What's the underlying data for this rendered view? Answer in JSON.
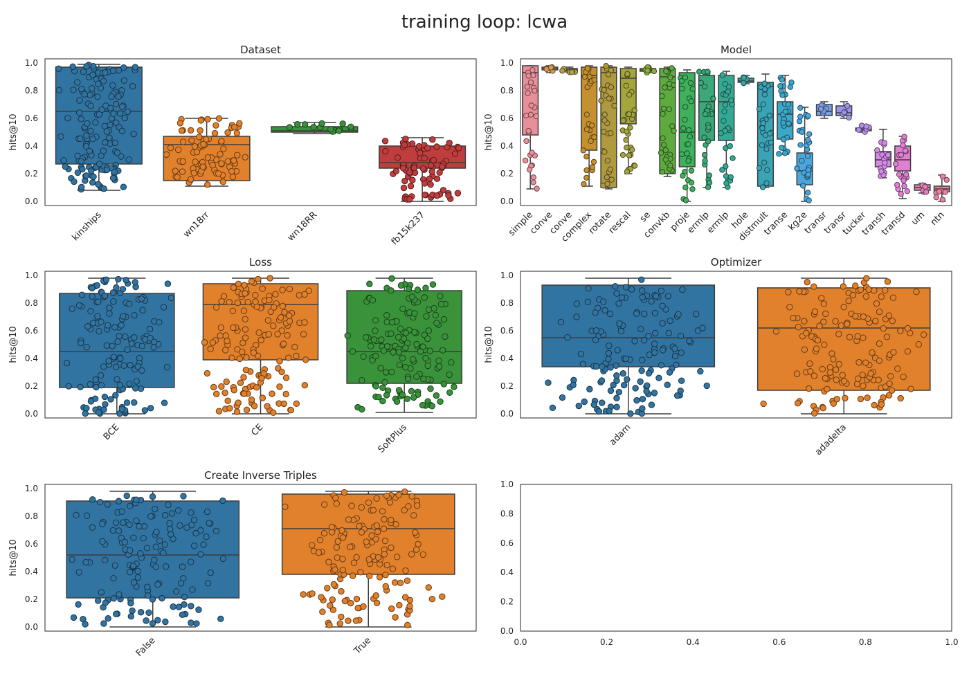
{
  "suptitle": "training loop: lcwa",
  "chart_data": [
    {
      "type": "box",
      "title": "Dataset",
      "ylabel": "hits@10",
      "ylim": [
        0,
        1.0
      ],
      "yticks": [
        "0.0",
        "0.2",
        "0.4",
        "0.6",
        "0.8",
        "1.0"
      ],
      "categories": [
        "kinships",
        "wn18rr",
        "wn18RR",
        "fb15k237"
      ],
      "colors": [
        "#3274a1",
        "#e1812c",
        "#3a923a",
        "#c03d3e"
      ],
      "boxes": [
        {
          "whislo": 0.08,
          "q1": 0.27,
          "med": 0.65,
          "q3": 0.97,
          "whishi": 0.99
        },
        {
          "whislo": 0.11,
          "q1": 0.15,
          "med": 0.41,
          "q3": 0.47,
          "whishi": 0.6
        },
        {
          "whislo": 0.49,
          "q1": 0.5,
          "med": 0.51,
          "q3": 0.54,
          "whishi": 0.57
        },
        {
          "whislo": 0.0,
          "q1": 0.24,
          "med": 0.28,
          "q3": 0.4,
          "whishi": 0.46
        }
      ]
    },
    {
      "type": "box",
      "title": "Model",
      "ylabel": "hits@10",
      "ylim": [
        0,
        1.0
      ],
      "yticks": [
        "0.0",
        "0.2",
        "0.4",
        "0.6",
        "0.8",
        "1.0"
      ],
      "categories": [
        "simple",
        "conve",
        "conve",
        "complex",
        "rotate",
        "rescal",
        "se",
        "convkb",
        "proje",
        "ermlp",
        "ermlp",
        "hole",
        "distmult",
        "transe",
        "kg2e",
        "transr",
        "transr",
        "tucker",
        "transh",
        "transd",
        "um",
        "ntn"
      ],
      "colors": [
        "#e8909a",
        "#d49b56",
        "#b3a34f",
        "#c5902f",
        "#b09a3f",
        "#a5a53e",
        "#8fac3e",
        "#5daa3e",
        "#3fb05c",
        "#3aa878",
        "#35a894",
        "#38a8a5",
        "#3aa3b5",
        "#3ba7c9",
        "#4aa6dc",
        "#7c9fe3",
        "#9b95e8",
        "#b491e8",
        "#d58ae8",
        "#e080d3",
        "#e57fb8",
        "#e684a3"
      ],
      "boxes": [
        {
          "whislo": 0.09,
          "q1": 0.48,
          "med": 0.93,
          "q3": 0.98,
          "whishi": 0.98
        },
        {
          "whislo": 0.93,
          "q1": 0.95,
          "med": 0.96,
          "q3": 0.97,
          "whishi": 0.98
        },
        {
          "whislo": 0.93,
          "q1": 0.94,
          "med": 0.95,
          "q3": 0.96,
          "whishi": 0.97
        },
        {
          "whislo": 0.11,
          "q1": 0.37,
          "med": 0.91,
          "q3": 0.97,
          "whishi": 0.98
        },
        {
          "whislo": 0.09,
          "q1": 0.1,
          "med": 0.93,
          "q3": 0.97,
          "whishi": 0.98
        },
        {
          "whislo": 0.2,
          "q1": 0.56,
          "med": 0.89,
          "q3": 0.96,
          "whishi": 0.97
        },
        {
          "whislo": 0.93,
          "q1": 0.94,
          "med": 0.95,
          "q3": 0.96,
          "whishi": 0.97
        },
        {
          "whislo": 0.18,
          "q1": 0.2,
          "med": 0.9,
          "q3": 0.96,
          "whishi": 0.97
        },
        {
          "whislo": 0.0,
          "q1": 0.25,
          "med": 0.5,
          "q3": 0.93,
          "whishi": 0.95
        },
        {
          "whislo": 0.1,
          "q1": 0.44,
          "med": 0.72,
          "q3": 0.91,
          "whishi": 0.94
        },
        {
          "whislo": 0.1,
          "q1": 0.44,
          "med": 0.72,
          "q3": 0.91,
          "whishi": 0.94
        },
        {
          "whislo": 0.85,
          "q1": 0.86,
          "med": 0.87,
          "q3": 0.89,
          "whishi": 0.91
        },
        {
          "whislo": 0.1,
          "q1": 0.11,
          "med": 0.83,
          "q3": 0.86,
          "whishi": 0.92
        },
        {
          "whislo": 0.34,
          "q1": 0.45,
          "med": 0.63,
          "q3": 0.72,
          "whishi": 0.91
        },
        {
          "whislo": 0.0,
          "q1": 0.12,
          "med": 0.22,
          "q3": 0.35,
          "whishi": 0.68
        },
        {
          "whislo": 0.6,
          "q1": 0.62,
          "med": 0.65,
          "q3": 0.7,
          "whishi": 0.72
        },
        {
          "whislo": 0.6,
          "q1": 0.62,
          "med": 0.64,
          "q3": 0.69,
          "whishi": 0.72
        },
        {
          "whislo": 0.5,
          "q1": 0.51,
          "med": 0.52,
          "q3": 0.53,
          "whishi": 0.55
        },
        {
          "whislo": 0.17,
          "q1": 0.25,
          "med": 0.3,
          "q3": 0.36,
          "whishi": 0.52
        },
        {
          "whislo": 0.02,
          "q1": 0.22,
          "med": 0.3,
          "q3": 0.4,
          "whishi": 0.47
        },
        {
          "whislo": 0.06,
          "q1": 0.08,
          "med": 0.1,
          "q3": 0.12,
          "whishi": 0.13
        },
        {
          "whislo": 0.0,
          "q1": 0.07,
          "med": 0.09,
          "q3": 0.11,
          "whishi": 0.19
        }
      ]
    },
    {
      "type": "box",
      "title": "Loss",
      "ylabel": "hits@10",
      "ylim": [
        0,
        1.0
      ],
      "yticks": [
        "0.0",
        "0.2",
        "0.4",
        "0.6",
        "0.8",
        "1.0"
      ],
      "categories": [
        "BCE",
        "CE",
        "SoftPlus"
      ],
      "colors": [
        "#3274a1",
        "#e1812c",
        "#3a923a"
      ],
      "boxes": [
        {
          "whislo": 0.0,
          "q1": 0.19,
          "med": 0.45,
          "q3": 0.87,
          "whishi": 0.98
        },
        {
          "whislo": 0.0,
          "q1": 0.39,
          "med": 0.79,
          "q3": 0.94,
          "whishi": 0.98
        },
        {
          "whislo": 0.01,
          "q1": 0.22,
          "med": 0.45,
          "q3": 0.89,
          "whishi": 0.98
        }
      ]
    },
    {
      "type": "box",
      "title": "Optimizer",
      "ylabel": "hits@10",
      "ylim": [
        0,
        1.0
      ],
      "yticks": [
        "0.0",
        "0.2",
        "0.4",
        "0.6",
        "0.8",
        "1.0"
      ],
      "categories": [
        "adam",
        "adadelta"
      ],
      "colors": [
        "#3274a1",
        "#e1812c"
      ],
      "boxes": [
        {
          "whislo": 0.0,
          "q1": 0.34,
          "med": 0.55,
          "q3": 0.93,
          "whishi": 0.98
        },
        {
          "whislo": 0.0,
          "q1": 0.17,
          "med": 0.62,
          "q3": 0.91,
          "whishi": 0.98
        }
      ]
    },
    {
      "type": "box",
      "title": "Create Inverse Triples",
      "ylabel": "hits@10",
      "ylim": [
        0,
        1.0
      ],
      "yticks": [
        "0.0",
        "0.2",
        "0.4",
        "0.6",
        "0.8",
        "1.0"
      ],
      "categories": [
        "False",
        "True"
      ],
      "colors": [
        "#3274a1",
        "#e1812c"
      ],
      "boxes": [
        {
          "whislo": 0.0,
          "q1": 0.21,
          "med": 0.52,
          "q3": 0.91,
          "whishi": 0.98
        },
        {
          "whislo": 0.0,
          "q1": 0.38,
          "med": 0.71,
          "q3": 0.96,
          "whishi": 0.98
        }
      ]
    },
    {
      "type": "empty",
      "title": "",
      "xlim": [
        0,
        1.0
      ],
      "ylim": [
        0,
        1.0
      ],
      "xticks": [
        "0.0",
        "0.2",
        "0.4",
        "0.6",
        "0.8",
        "1.0"
      ],
      "yticks": [
        "0.0",
        "0.2",
        "0.4",
        "0.6",
        "0.8",
        "1.0"
      ]
    }
  ]
}
